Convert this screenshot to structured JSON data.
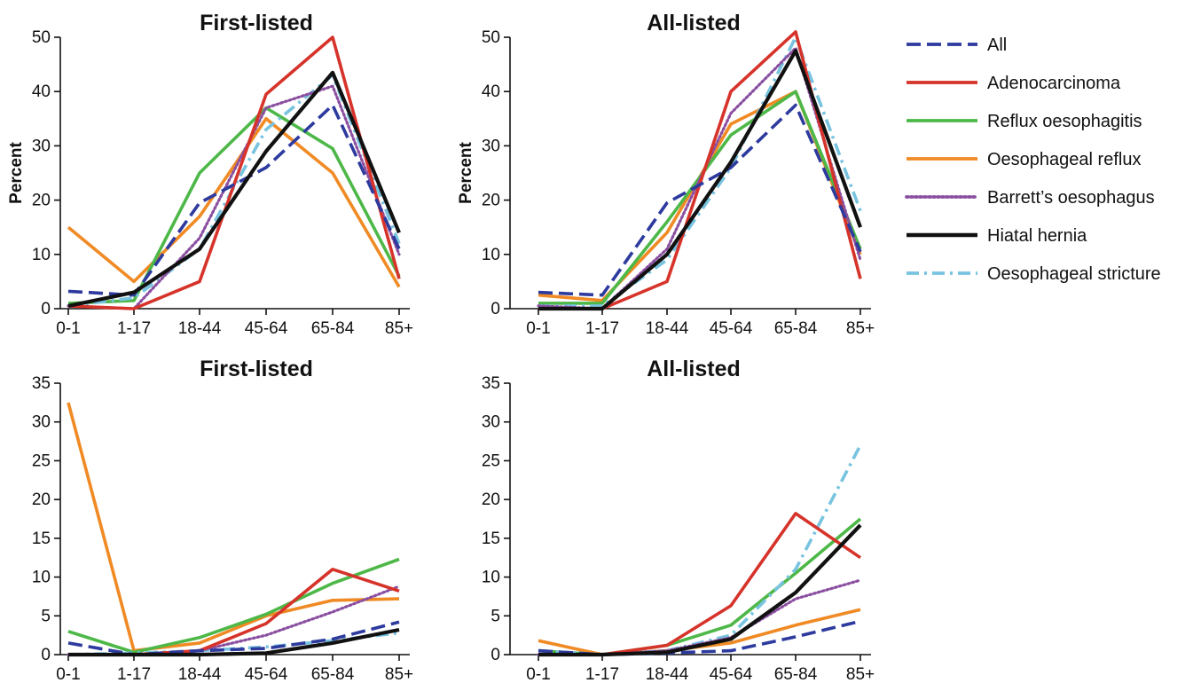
{
  "legend": [
    {
      "name": "All",
      "color": "#2d3a9e",
      "dash": "dash"
    },
    {
      "name": "Adenocarcinoma",
      "color": "#d6332a",
      "dash": "solid"
    },
    {
      "name": "Reflux oesophagitis",
      "color": "#4db848",
      "dash": "solid"
    },
    {
      "name": "Oesophageal reflux",
      "color": "#f08a24",
      "dash": "solid"
    },
    {
      "name": "Barrett’s oesophagus",
      "color": "#8a4fa0",
      "dash": "dot"
    },
    {
      "name": "Hiatal hernia",
      "color": "#111111",
      "dash": "solid"
    },
    {
      "name": "Oesophageal stricture",
      "color": "#78c3df",
      "dash": "dashdot"
    }
  ],
  "chart_data": [
    {
      "type": "line",
      "title": "First-listed",
      "ylabel": "Percent",
      "categories": [
        "0-1",
        "1-17",
        "18-44",
        "45-64",
        "65-84",
        "85+"
      ],
      "ylim": [
        0,
        50
      ],
      "yticks": [
        0,
        10,
        20,
        30,
        40,
        50
      ],
      "series": [
        {
          "name": "All",
          "values": [
            3.2,
            2.5,
            19.5,
            26,
            37.5,
            11
          ]
        },
        {
          "name": "Adenocarcinoma",
          "values": [
            0.5,
            0,
            5,
            39.5,
            50,
            5.5
          ]
        },
        {
          "name": "Reflux oesophagitis",
          "values": [
            1,
            1.5,
            25,
            37,
            29.5,
            6
          ]
        },
        {
          "name": "Oesophageal reflux",
          "values": [
            15,
            5,
            17,
            35,
            25,
            4
          ]
        },
        {
          "name": "Barrett’s oesophagus",
          "values": [
            0.5,
            0,
            13,
            37,
            41,
            10
          ]
        },
        {
          "name": "Hiatal hernia",
          "values": [
            0.5,
            3,
            11,
            29,
            43.5,
            14
          ]
        },
        {
          "name": "Oesophageal stricture",
          "values": [
            0.5,
            2,
            11,
            33,
            43,
            12
          ]
        }
      ]
    },
    {
      "type": "line",
      "title": "All-listed",
      "ylabel": "Percent",
      "categories": [
        "0-1",
        "1-17",
        "18-44",
        "45-64",
        "65-84",
        "85+"
      ],
      "ylim": [
        0,
        50
      ],
      "yticks": [
        0,
        10,
        20,
        30,
        40,
        50
      ],
      "series": [
        {
          "name": "All",
          "values": [
            3,
            2.5,
            19.5,
            26,
            37.5,
            10.5
          ]
        },
        {
          "name": "Adenocarcinoma",
          "values": [
            0,
            0,
            5,
            40,
            51,
            5.5
          ]
        },
        {
          "name": "Reflux oesophagitis",
          "values": [
            1,
            1,
            16,
            32,
            40,
            11
          ]
        },
        {
          "name": "Oesophageal reflux",
          "values": [
            2.5,
            1.5,
            14,
            34,
            40,
            10
          ]
        },
        {
          "name": "Barrett’s oesophagus",
          "values": [
            0.5,
            0,
            11,
            36,
            48,
            9
          ]
        },
        {
          "name": "Hiatal hernia",
          "values": [
            0,
            0,
            10,
            27,
            47.5,
            15
          ]
        },
        {
          "name": "Oesophageal stricture",
          "values": [
            0.5,
            0.5,
            9,
            26,
            50,
            18
          ]
        }
      ]
    },
    {
      "type": "line",
      "title": "First-listed",
      "ylabel": "",
      "categories": [
        "0-1",
        "1-17",
        "18-44",
        "45-64",
        "65-84",
        "85+"
      ],
      "ylim": [
        0,
        35
      ],
      "yticks": [
        0,
        5,
        10,
        15,
        20,
        25,
        30,
        35
      ],
      "series": [
        {
          "name": "All",
          "values": [
            1.5,
            0,
            0.5,
            0.8,
            2,
            4.2
          ]
        },
        {
          "name": "Adenocarcinoma",
          "values": [
            0,
            0,
            0.5,
            4,
            11,
            8.2
          ]
        },
        {
          "name": "Reflux oesophagitis",
          "values": [
            3,
            0.3,
            2.2,
            5.2,
            9.2,
            12.3
          ]
        },
        {
          "name": "Oesophageal reflux",
          "values": [
            32.5,
            0.5,
            1.5,
            5,
            7,
            7.2
          ]
        },
        {
          "name": "Barrett’s oesophagus",
          "values": [
            0,
            0,
            0.5,
            2.5,
            5.5,
            8.8
          ]
        },
        {
          "name": "Hiatal hernia",
          "values": [
            0,
            0,
            0,
            0.2,
            1.5,
            3.2
          ]
        },
        {
          "name": "Oesophageal stricture",
          "values": [
            0,
            0.2,
            0.5,
            1,
            1.8,
            2.8
          ]
        }
      ]
    },
    {
      "type": "line",
      "title": "All-listed",
      "ylabel": "",
      "categories": [
        "0-1",
        "1-17",
        "18-44",
        "45-64",
        "65-84",
        "85+"
      ],
      "ylim": [
        0,
        35
      ],
      "yticks": [
        0,
        5,
        10,
        15,
        20,
        25,
        30,
        35
      ],
      "series": [
        {
          "name": "All",
          "values": [
            0.5,
            0,
            0.2,
            0.5,
            2.3,
            4.3
          ]
        },
        {
          "name": "Adenocarcinoma",
          "values": [
            0,
            0,
            1.2,
            6.3,
            18.2,
            12.5
          ]
        },
        {
          "name": "Reflux oesophagitis",
          "values": [
            0.5,
            0,
            1.2,
            3.8,
            10.5,
            17.5
          ]
        },
        {
          "name": "Oesophageal reflux",
          "values": [
            1.8,
            0,
            0.5,
            1.5,
            3.8,
            5.8
          ]
        },
        {
          "name": "Barrett’s oesophagus",
          "values": [
            0,
            0,
            0.5,
            2.2,
            7.2,
            9.6
          ]
        },
        {
          "name": "Hiatal hernia",
          "values": [
            0,
            0,
            0.3,
            2,
            8,
            16.7
          ]
        },
        {
          "name": "Oesophageal stricture",
          "values": [
            0.5,
            0,
            0.5,
            2.5,
            11,
            27
          ]
        }
      ]
    }
  ]
}
